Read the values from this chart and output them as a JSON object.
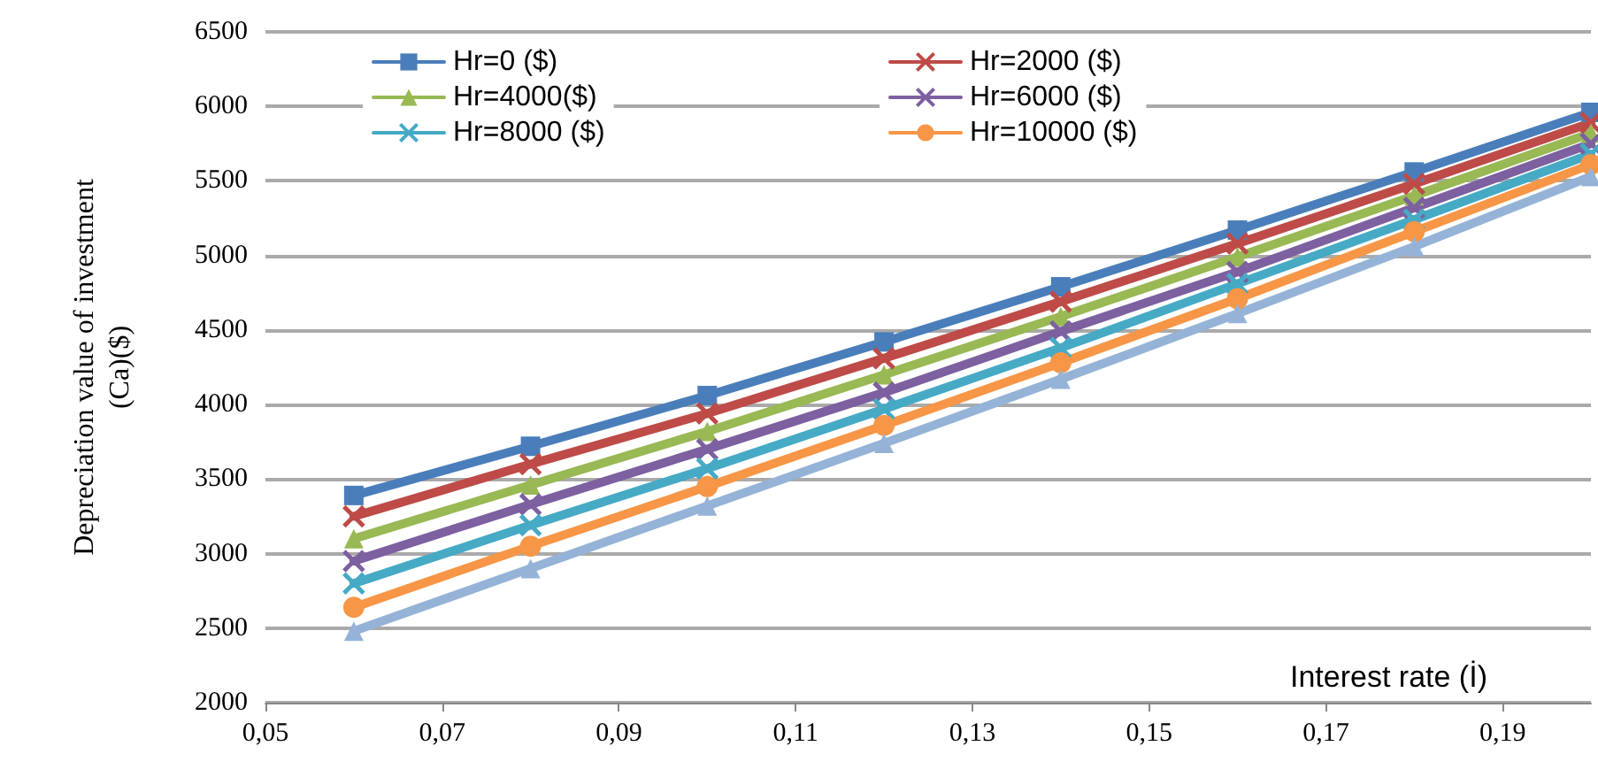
{
  "chart_data": {
    "type": "line",
    "xlabel": "Interest rate (İ)",
    "ylabel": "Depreciation value of investment\n(Ca)($)",
    "x": [
      0.06,
      0.08,
      0.1,
      0.12,
      0.14,
      0.16,
      0.18,
      0.2
    ],
    "xlim": [
      0.05,
      0.2
    ],
    "xticks": [
      {
        "value": 0.05,
        "label": "0,05"
      },
      {
        "value": 0.07,
        "label": "0,07"
      },
      {
        "value": 0.09,
        "label": "0,09"
      },
      {
        "value": 0.11,
        "label": "0,11"
      },
      {
        "value": 0.13,
        "label": "0,13"
      },
      {
        "value": 0.15,
        "label": "0,15"
      },
      {
        "value": 0.17,
        "label": "0,17"
      },
      {
        "value": 0.19,
        "label": "0,19"
      }
    ],
    "ylim": [
      2000,
      6500
    ],
    "yticks": [
      2000,
      2500,
      3000,
      3500,
      4000,
      4500,
      5000,
      5500,
      6000,
      6500
    ],
    "grid": "y",
    "legend": "top left",
    "series": [
      {
        "name": "Hr=0 ($)",
        "color": "#4a7ebb",
        "marker": "square",
        "values": [
          3390,
          3720,
          4060,
          4420,
          4790,
          5170,
          5560,
          5960
        ]
      },
      {
        "name": "Hr=2000 ($)",
        "color": "#be4b48",
        "marker": "cross",
        "values": [
          3250,
          3600,
          3940,
          4310,
          4690,
          5080,
          5480,
          5890
        ]
      },
      {
        "name": "Hr=4000($)",
        "color": "#98b954",
        "marker": "triangle",
        "values": [
          3100,
          3460,
          3820,
          4200,
          4590,
          4990,
          5400,
          5820
        ]
      },
      {
        "name": "Hr=6000 ($)",
        "color": "#7d60a0",
        "marker": "cross",
        "values": [
          2950,
          3330,
          3700,
          4080,
          4490,
          4890,
          5320,
          5750
        ]
      },
      {
        "name": "Hr=8000 ($)",
        "color": "#46aac5",
        "marker": "cross",
        "values": [
          2800,
          3190,
          3570,
          3970,
          4380,
          4810,
          5240,
          5680
        ]
      },
      {
        "name": "Hr=10000 ($)",
        "color": "#f79646",
        "marker": "circle",
        "values": [
          2640,
          3050,
          3450,
          3860,
          4280,
          4710,
          5160,
          5610
        ]
      },
      {
        "color": "#95b3d7",
        "marker": "triangle",
        "values": [
          2480,
          2900,
          3320,
          3740,
          4170,
          4610,
          5060,
          5530
        ]
      }
    ]
  }
}
